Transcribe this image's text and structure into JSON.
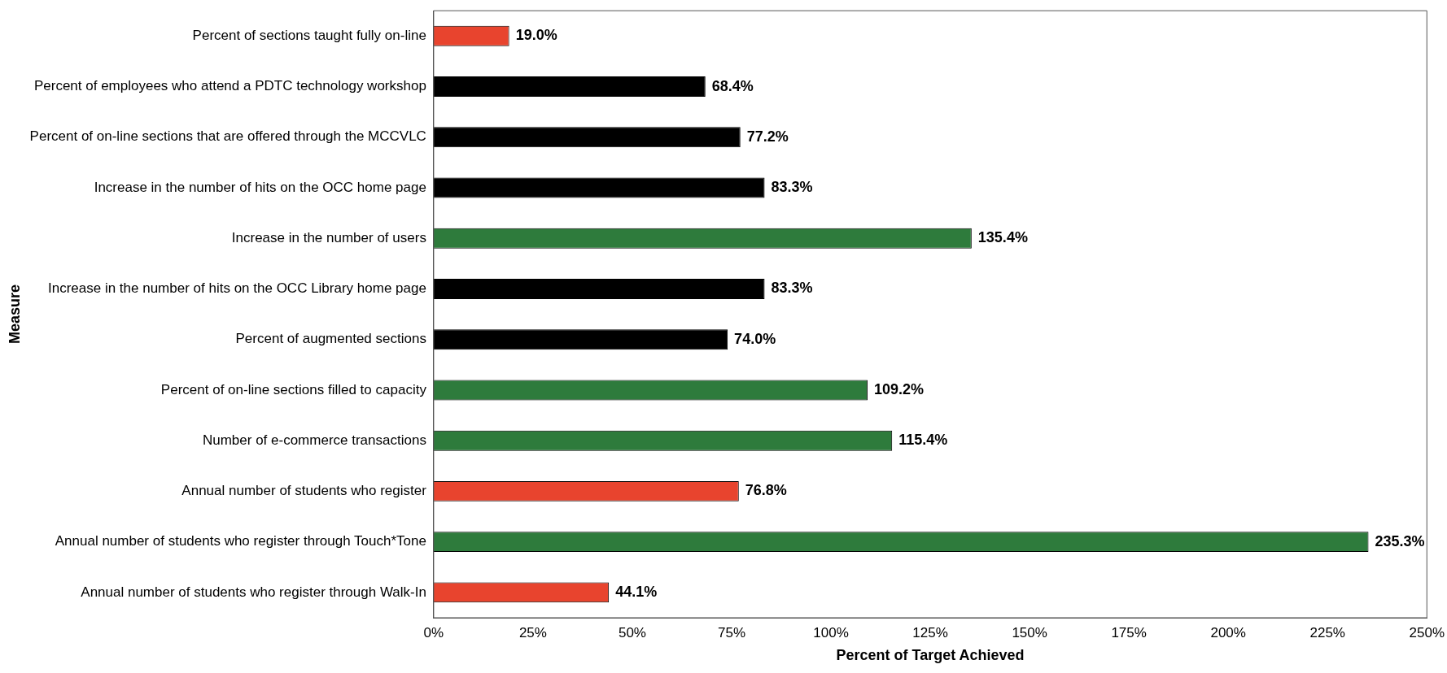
{
  "chart_data": {
    "type": "bar",
    "orientation": "horizontal",
    "xlabel": "Percent of Target Achieved",
    "ylabel": "Measure",
    "categories": [
      "Percent of sections taught fully on-line",
      "Percent of employees who attend a PDTC technology workshop",
      "Percent of on-line sections that are offered through the MCCVLC",
      "Increase in the number of hits on the OCC home page",
      "Increase in the number of users",
      "Increase in the number of hits on the OCC Library home page",
      "Percent of augmented sections",
      "Percent of on-line sections filled to capacity",
      "Number of e-commerce transactions",
      "Annual number of students who register",
      "Annual number of students who register through Touch*Tone",
      "Annual number of students who register through Walk-In"
    ],
    "values": [
      19.0,
      68.4,
      77.2,
      83.3,
      135.4,
      83.3,
      74.0,
      109.2,
      115.4,
      76.8,
      235.3,
      44.1
    ],
    "colors": [
      "#e8442e",
      "#000000",
      "#000000",
      "#000000",
      "#2e7b3c",
      "#000000",
      "#000000",
      "#2e7b3c",
      "#2e7b3c",
      "#e8442e",
      "#2e7b3c",
      "#e8442e"
    ],
    "value_labels": [
      "19.0%",
      "68.4%",
      "77.2%",
      "83.3%",
      "135.4%",
      "83.3%",
      "74.0%",
      "109.2%",
      "115.4%",
      "76.8%",
      "235.3%",
      "44.1%"
    ],
    "xlim": [
      0,
      250
    ],
    "xticks": [
      {
        "value": 0,
        "label": "0%"
      },
      {
        "value": 25,
        "label": "25%"
      },
      {
        "value": 50,
        "label": "50%"
      },
      {
        "value": 75,
        "label": "75%"
      },
      {
        "value": 100,
        "label": "100%"
      },
      {
        "value": 125,
        "label": "125%"
      },
      {
        "value": 150,
        "label": "150%"
      },
      {
        "value": 175,
        "label": "175%"
      },
      {
        "value": 200,
        "label": "200%"
      },
      {
        "value": 225,
        "label": "225%"
      },
      {
        "value": 250,
        "label": "250%"
      }
    ],
    "grid": false,
    "legend": false
  }
}
